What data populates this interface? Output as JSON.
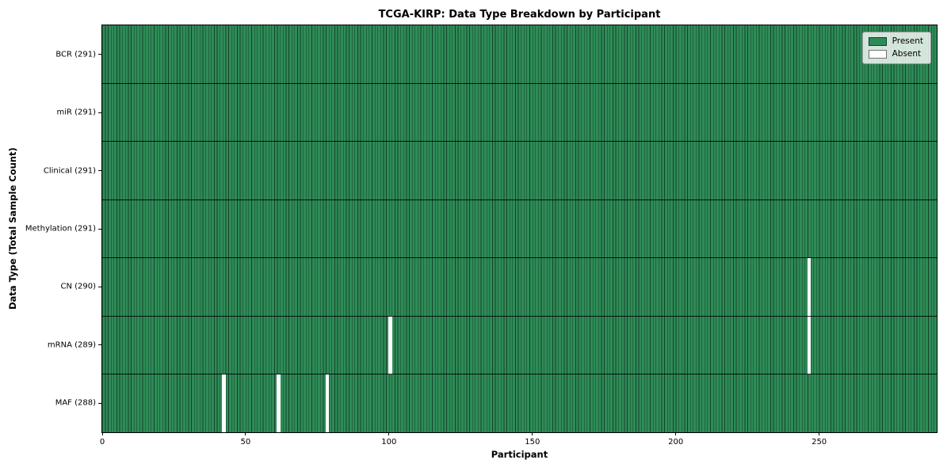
{
  "colors": {
    "present": "#2e8b57",
    "cell_edge": "#14432a",
    "absent": "#ffffff",
    "row_divider": "rgba(0,0,0,0.85)",
    "axis": "#000000",
    "legend_border": "#9a9a9a"
  },
  "chart_data": {
    "type": "heatmap",
    "title": "TCGA-KIRP: Data Type Breakdown by Participant",
    "xlabel": "Participant",
    "ylabel": "Data Type (Total Sample Count)",
    "participants_total": 291,
    "xlim": [
      0,
      291
    ],
    "x_ticks": [
      0,
      50,
      100,
      150,
      200,
      250
    ],
    "grid": false,
    "legend_position": "upper right",
    "legend": [
      {
        "label": "Present",
        "color": "#2e8b57"
      },
      {
        "label": "Absent",
        "color": "#ffffff"
      }
    ],
    "rows": [
      {
        "label": "BCR (291)",
        "data_type": "BCR",
        "present_count": 291,
        "absent_participants": []
      },
      {
        "label": "miR (291)",
        "data_type": "miR",
        "present_count": 291,
        "absent_participants": []
      },
      {
        "label": "Clinical (291)",
        "data_type": "Clinical",
        "present_count": 291,
        "absent_participants": []
      },
      {
        "label": "Methylation (291)",
        "data_type": "Methylation",
        "present_count": 291,
        "absent_participants": []
      },
      {
        "label": "CN (290)",
        "data_type": "CN",
        "present_count": 290,
        "absent_participants": [
          246
        ]
      },
      {
        "label": "mRNA (289)",
        "data_type": "mRNA",
        "present_count": 289,
        "absent_participants": [
          100,
          246
        ]
      },
      {
        "label": "MAF (288)",
        "data_type": "MAF",
        "present_count": 288,
        "absent_participants": [
          42,
          61,
          78
        ]
      }
    ]
  }
}
